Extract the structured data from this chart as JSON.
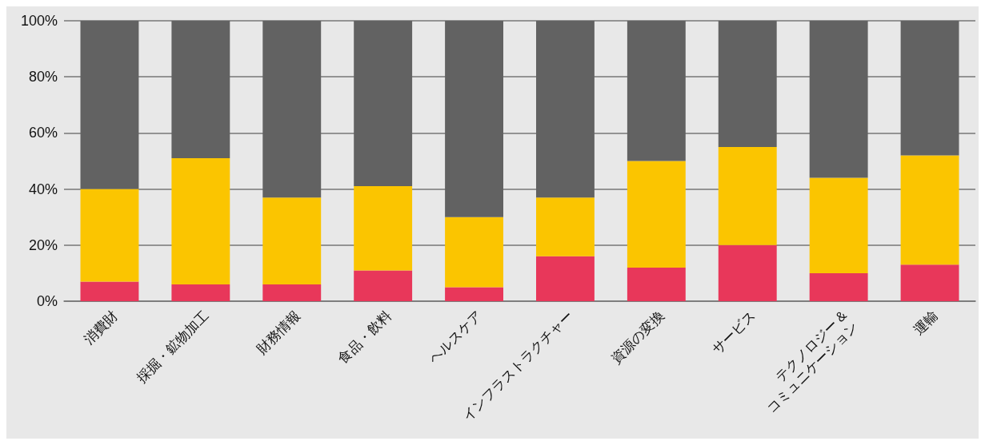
{
  "chart_data": {
    "type": "bar",
    "stacked": true,
    "categories": [
      "消費財",
      "採掘・鉱物加工",
      "財務情報",
      "食品・飲料",
      "ヘルスケア",
      "インフラストラクチャー",
      "資源の変換",
      "サービス",
      "テクノロジー &\nコミュニケーション",
      "運輸"
    ],
    "series": [
      {
        "color": "#e8375a",
        "values": [
          7,
          6,
          6,
          11,
          5,
          16,
          12,
          20,
          10,
          13
        ]
      },
      {
        "color": "#fbc500",
        "values": [
          33,
          45,
          31,
          30,
          25,
          21,
          38,
          35,
          34,
          39
        ]
      },
      {
        "color": "#626262",
        "values": [
          60,
          49,
          63,
          59,
          70,
          63,
          50,
          45,
          56,
          48
        ]
      }
    ],
    "ylim": [
      0,
      100
    ],
    "yticks": [
      {
        "value": 0,
        "label": "0%"
      },
      {
        "value": 20,
        "label": "20%"
      },
      {
        "value": 40,
        "label": "40%"
      },
      {
        "value": 60,
        "label": "60%"
      },
      {
        "value": 80,
        "label": "80%"
      },
      {
        "value": 100,
        "label": "100%"
      }
    ],
    "grid": "y"
  }
}
